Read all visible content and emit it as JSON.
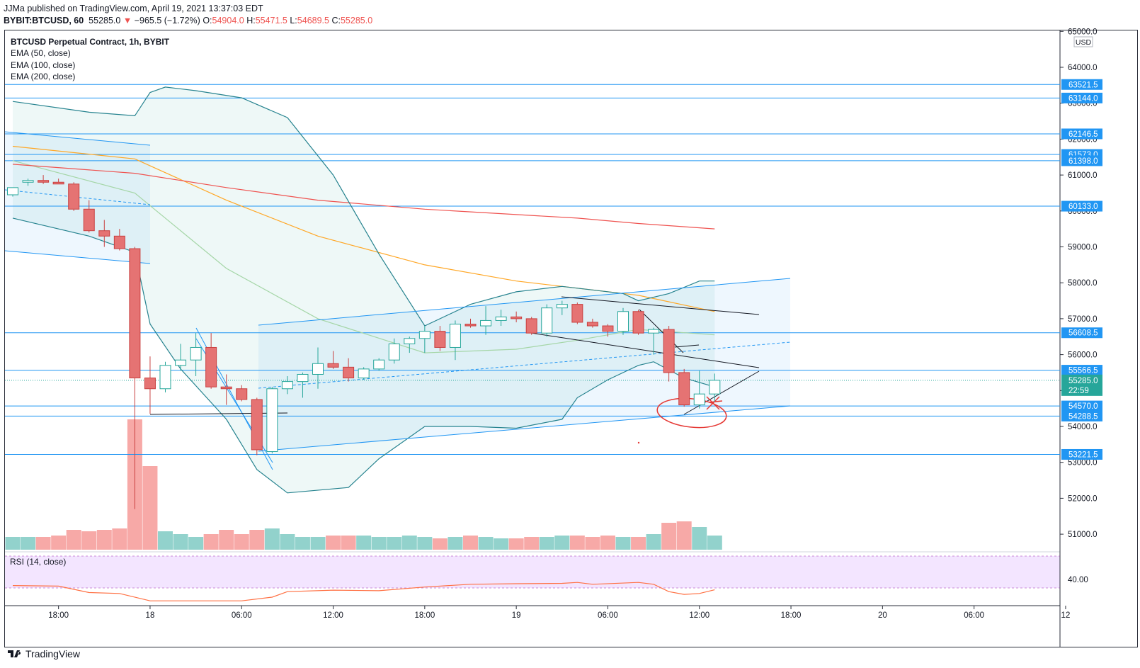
{
  "header": {
    "publisher": "JJMa published on TradingView.com, April 19, 2021 13:37:03 EDT",
    "symbol": "BYBIT:BTCUSD, 60",
    "last": "55285.0",
    "change": "−965.5 (−1.72%)",
    "o_label": "O:",
    "o": "54904.0",
    "h_label": "H:",
    "h": "55471.5",
    "l_label": "L:",
    "l": "54689.5",
    "c_label": "C:",
    "c": "55285.0"
  },
  "legend": {
    "title": "BTCUSD Perpetual Contract, 1h, BYBIT",
    "ema50": "EMA (50, close)",
    "ema100": "EMA (100, close)",
    "ema200": "EMA (200, close)"
  },
  "rsi_label": "RSI (14, close)",
  "rsi_level": "40.00",
  "currency": "USD",
  "countdown": "22:59",
  "footer": {
    "brand": "TradingView"
  },
  "colors": {
    "up": "#26a69a",
    "down": "#ef5350",
    "line": "#2196f3",
    "ema50": "#a5d6a7",
    "ema100": "#ffa726",
    "ema200": "#ef5350",
    "bb": "#26838f",
    "rsi": "#ff7043",
    "rsi_bg": "#f3e5ff"
  },
  "chart_data": {
    "type": "candlestick",
    "interval": "1h",
    "ylim": [
      50500,
      65200
    ],
    "y_ticks": [
      51000,
      52000,
      53000,
      54000,
      55000,
      56000,
      57000,
      58000,
      59000,
      60000,
      61000,
      62000,
      63000,
      64000,
      65000
    ],
    "y_tick_labels": [
      "51000.0",
      "52000.0",
      "53000.0",
      "54000.0",
      "55000.0",
      "56000.0",
      "57000.0",
      "58000.0",
      "59000.0",
      "60000.0",
      "61000.0",
      "62000.0",
      "63000.0",
      "64000.0",
      "65000.0"
    ],
    "x_tick_labels": [
      "18:00",
      "18",
      "06:00",
      "12:00",
      "18:00",
      "19",
      "06:00",
      "12:00",
      "18:00",
      "20",
      "06:00",
      "12"
    ],
    "x_tick_index": [
      3,
      9,
      15,
      21,
      27,
      33,
      39,
      45,
      51,
      57,
      63,
      69
    ],
    "candles": [
      {
        "o": 60450,
        "h": 60650,
        "l": 60400,
        "c": 60650
      },
      {
        "o": 60800,
        "h": 60900,
        "l": 60700,
        "c": 60850
      },
      {
        "o": 60850,
        "h": 61000,
        "l": 60750,
        "c": 60800
      },
      {
        "o": 60800,
        "h": 60900,
        "l": 60750,
        "c": 60750
      },
      {
        "o": 60750,
        "h": 60800,
        "l": 60000,
        "c": 60050
      },
      {
        "o": 60050,
        "h": 60300,
        "l": 59400,
        "c": 59450
      },
      {
        "o": 59450,
        "h": 59750,
        "l": 59000,
        "c": 59300
      },
      {
        "o": 59300,
        "h": 59500,
        "l": 58900,
        "c": 58950
      },
      {
        "o": 58950,
        "h": 59000,
        "l": 51700,
        "c": 55350
      },
      {
        "o": 55350,
        "h": 55950,
        "l": 54350,
        "c": 55050
      },
      {
        "o": 55050,
        "h": 55800,
        "l": 54950,
        "c": 55700
      },
      {
        "o": 55700,
        "h": 56300,
        "l": 55550,
        "c": 55850
      },
      {
        "o": 55850,
        "h": 56600,
        "l": 55400,
        "c": 56200
      },
      {
        "o": 56200,
        "h": 56600,
        "l": 55050,
        "c": 55100
      },
      {
        "o": 55100,
        "h": 55450,
        "l": 54600,
        "c": 55050
      },
      {
        "o": 55050,
        "h": 55150,
        "l": 54700,
        "c": 54750
      },
      {
        "o": 54750,
        "h": 54800,
        "l": 53200,
        "c": 53350
      },
      {
        "o": 53300,
        "h": 55100,
        "l": 53250,
        "c": 55050
      },
      {
        "o": 55050,
        "h": 55400,
        "l": 54900,
        "c": 55250
      },
      {
        "o": 55250,
        "h": 55500,
        "l": 54800,
        "c": 55450
      },
      {
        "o": 55450,
        "h": 56200,
        "l": 55050,
        "c": 55750
      },
      {
        "o": 55750,
        "h": 56100,
        "l": 55600,
        "c": 55650
      },
      {
        "o": 55650,
        "h": 55900,
        "l": 55250,
        "c": 55350
      },
      {
        "o": 55350,
        "h": 55650,
        "l": 55300,
        "c": 55600
      },
      {
        "o": 55600,
        "h": 55900,
        "l": 55550,
        "c": 55850
      },
      {
        "o": 55850,
        "h": 56450,
        "l": 55750,
        "c": 56300
      },
      {
        "o": 56300,
        "h": 56500,
        "l": 56050,
        "c": 56450
      },
      {
        "o": 56450,
        "h": 56800,
        "l": 56050,
        "c": 56650
      },
      {
        "o": 56650,
        "h": 56800,
        "l": 56100,
        "c": 56200
      },
      {
        "o": 56200,
        "h": 56950,
        "l": 55850,
        "c": 56850
      },
      {
        "o": 56850,
        "h": 57000,
        "l": 56750,
        "c": 56800
      },
      {
        "o": 56800,
        "h": 57350,
        "l": 56550,
        "c": 56950
      },
      {
        "o": 56950,
        "h": 57250,
        "l": 56800,
        "c": 57050
      },
      {
        "o": 57050,
        "h": 57200,
        "l": 56900,
        "c": 57000
      },
      {
        "o": 57000,
        "h": 57050,
        "l": 56550,
        "c": 56600
      },
      {
        "o": 56600,
        "h": 57400,
        "l": 56500,
        "c": 57300
      },
      {
        "o": 57300,
        "h": 57500,
        "l": 57100,
        "c": 57400
      },
      {
        "o": 57400,
        "h": 57450,
        "l": 56850,
        "c": 56900
      },
      {
        "o": 56900,
        "h": 57000,
        "l": 56750,
        "c": 56800
      },
      {
        "o": 56800,
        "h": 56850,
        "l": 56500,
        "c": 56650
      },
      {
        "o": 56650,
        "h": 57300,
        "l": 56550,
        "c": 57200
      },
      {
        "o": 57200,
        "h": 57250,
        "l": 56550,
        "c": 56600
      },
      {
        "o": 56600,
        "h": 56750,
        "l": 56000,
        "c": 56700
      },
      {
        "o": 56700,
        "h": 56800,
        "l": 55250,
        "c": 55500
      },
      {
        "o": 55500,
        "h": 55600,
        "l": 54550,
        "c": 54600
      },
      {
        "o": 54600,
        "h": 55550,
        "l": 54500,
        "c": 54904
      },
      {
        "o": 54904,
        "h": 55471.5,
        "l": 54689.5,
        "c": 55285
      }
    ],
    "volume": [
      0.09,
      0.09,
      0.09,
      0.1,
      0.14,
      0.13,
      0.14,
      0.15,
      0.92,
      0.59,
      0.13,
      0.11,
      0.09,
      0.11,
      0.14,
      0.11,
      0.14,
      0.15,
      0.11,
      0.09,
      0.09,
      0.1,
      0.1,
      0.1,
      0.09,
      0.09,
      0.1,
      0.09,
      0.08,
      0.09,
      0.1,
      0.09,
      0.08,
      0.08,
      0.09,
      0.09,
      0.1,
      0.1,
      0.09,
      0.1,
      0.09,
      0.09,
      0.11,
      0.19,
      0.2,
      0.16,
      0.1
    ],
    "ema50": [
      [
        0,
        61400
      ],
      [
        8,
        60500
      ],
      [
        14,
        58400
      ],
      [
        20,
        57000
      ],
      [
        27,
        56050
      ],
      [
        33,
        56150
      ],
      [
        37,
        56400
      ],
      [
        41,
        56700
      ],
      [
        46,
        56550
      ]
    ],
    "ema100": [
      [
        0,
        61800
      ],
      [
        8,
        61450
      ],
      [
        14,
        60300
      ],
      [
        20,
        59300
      ],
      [
        27,
        58500
      ],
      [
        33,
        58050
      ],
      [
        37,
        57850
      ],
      [
        41,
        57650
      ],
      [
        46,
        57200
      ]
    ],
    "ema200": [
      [
        0,
        61300
      ],
      [
        8,
        61050
      ],
      [
        14,
        60650
      ],
      [
        20,
        60300
      ],
      [
        27,
        60050
      ],
      [
        33,
        59900
      ],
      [
        37,
        59800
      ],
      [
        41,
        59650
      ],
      [
        46,
        59500
      ]
    ],
    "bb_upper": [
      [
        0,
        63050
      ],
      [
        5,
        62750
      ],
      [
        8,
        62650
      ],
      [
        9,
        63300
      ],
      [
        10,
        63450
      ],
      [
        12,
        63350
      ],
      [
        15,
        63150
      ],
      [
        18,
        62600
      ],
      [
        21,
        61000
      ],
      [
        24,
        58800
      ],
      [
        27,
        56800
      ],
      [
        30,
        57400
      ],
      [
        33,
        57750
      ],
      [
        36,
        57900
      ],
      [
        38,
        57800
      ],
      [
        40,
        57700
      ],
      [
        41,
        57500
      ],
      [
        43,
        57700
      ],
      [
        45,
        58050
      ],
      [
        46,
        58050
      ]
    ],
    "bb_lower": [
      [
        0,
        59800
      ],
      [
        5,
        59300
      ],
      [
        8,
        58850
      ],
      [
        9,
        56850
      ],
      [
        11,
        55600
      ],
      [
        14,
        54200
      ],
      [
        16,
        52800
      ],
      [
        18,
        52150
      ],
      [
        22,
        52300
      ],
      [
        24,
        53100
      ],
      [
        27,
        54000
      ],
      [
        30,
        54000
      ],
      [
        33,
        53950
      ],
      [
        36,
        54200
      ],
      [
        37,
        54800
      ],
      [
        39,
        55300
      ],
      [
        41,
        55700
      ],
      [
        42,
        55800
      ],
      [
        44,
        55350
      ],
      [
        46,
        55100
      ]
    ],
    "horizontal_levels": [
      "63521.5",
      "63144.0",
      "62146.5",
      "61573.0",
      "61398.0",
      "60133.0",
      "56608.5",
      "55566.5",
      "54570.0",
      "54288.5",
      "53221.5"
    ],
    "horizontal_values": [
      63521.5,
      63144.0,
      62146.5,
      61573.0,
      61398.0,
      60133.0,
      56608.5,
      55566.5,
      54570.0,
      54288.5,
      53221.5
    ],
    "rsi": [
      [
        0,
        41.3
      ],
      [
        3,
        41
      ],
      [
        5,
        37.5
      ],
      [
        7,
        37
      ],
      [
        9,
        33
      ],
      [
        12,
        33
      ],
      [
        15,
        33
      ],
      [
        17,
        35
      ],
      [
        18,
        38
      ],
      [
        21,
        38.8
      ],
      [
        24,
        38.5
      ],
      [
        27,
        40.5
      ],
      [
        30,
        42
      ],
      [
        33,
        42.3
      ],
      [
        36,
        42.5
      ],
      [
        37,
        43
      ],
      [
        38,
        42
      ],
      [
        41,
        43
      ],
      [
        42,
        42
      ],
      [
        43,
        38
      ],
      [
        44,
        36.5
      ],
      [
        45,
        37
      ],
      [
        46,
        39
      ]
    ],
    "rsi_ylim": [
      25,
      55
    ]
  }
}
